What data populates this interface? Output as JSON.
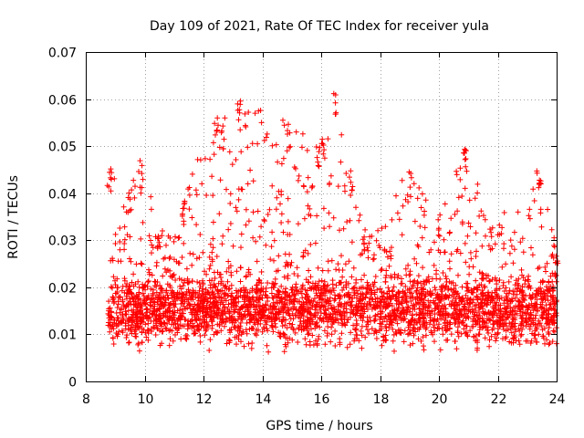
{
  "chart_data": {
    "type": "scatter",
    "title": "Day 109 of 2021, Rate Of TEC Index for receiver yula",
    "xlabel": "GPS time / hours",
    "ylabel": "ROTI / TECUs",
    "xlim": [
      8,
      24
    ],
    "ylim": [
      0,
      0.07
    ],
    "x_ticks": [
      "8",
      "10",
      "12",
      "14",
      "16",
      "18",
      "20",
      "22",
      "24"
    ],
    "y_ticks": [
      "0",
      "0.01",
      "0.02",
      "0.03",
      "0.04",
      "0.05",
      "0.06",
      "0.07"
    ],
    "grid": true,
    "legend": "none",
    "marker": "+",
    "color": "#ff0000",
    "observed_start_hour": 8.75,
    "envelope": [
      {
        "x": 8.8,
        "upper": 0.046
      },
      {
        "x": 9.5,
        "upper": 0.041
      },
      {
        "x": 9.9,
        "upper": 0.047
      },
      {
        "x": 10.5,
        "upper": 0.032
      },
      {
        "x": 11.3,
        "upper": 0.039
      },
      {
        "x": 12.4,
        "upper": 0.058
      },
      {
        "x": 12.6,
        "upper": 0.055
      },
      {
        "x": 13.2,
        "upper": 0.06
      },
      {
        "x": 14.9,
        "upper": 0.055
      },
      {
        "x": 15.9,
        "upper": 0.05
      },
      {
        "x": 16.1,
        "upper": 0.052
      },
      {
        "x": 16.5,
        "upper": 0.062
      },
      {
        "x": 17.0,
        "upper": 0.045
      },
      {
        "x": 17.5,
        "upper": 0.033
      },
      {
        "x": 19.0,
        "upper": 0.045
      },
      {
        "x": 20.0,
        "upper": 0.036
      },
      {
        "x": 20.9,
        "upper": 0.05
      },
      {
        "x": 21.8,
        "upper": 0.033
      },
      {
        "x": 23.4,
        "upper": 0.046
      },
      {
        "x": 24.0,
        "upper": 0.028
      }
    ],
    "typical_range": [
      0.005,
      0.025
    ],
    "minimum_value": 0.003
  }
}
